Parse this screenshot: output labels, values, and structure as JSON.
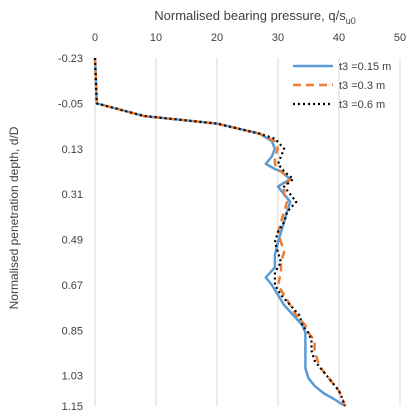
{
  "chart_data": {
    "type": "line",
    "title": "Normalised bearing pressure, q/s",
    "title_subscript": "u0",
    "xlabel": "Normalised bearing pressure, q/s",
    "ylabel": "Normalised penetration depth, d/D",
    "xlim": [
      0,
      50
    ],
    "ylim": [
      -0.23,
      1.15
    ],
    "x_axis_position": "top",
    "y_axis_inverted": true,
    "grid": "vertical",
    "legend_position": "top-right",
    "x_ticks": [
      "0",
      "10",
      "20",
      "30",
      "40",
      "50"
    ],
    "y_ticks": [
      "-0.23",
      "-0.05",
      "0.13",
      "0.31",
      "0.49",
      "0.67",
      "0.85",
      "1.03",
      "1.15"
    ],
    "series": [
      {
        "name": "t3 =0.15 m",
        "color": "#5b9bd5",
        "style": "solid",
        "points": [
          [
            0,
            -0.23
          ],
          [
            0.3,
            -0.05
          ],
          [
            8,
            0.0
          ],
          [
            20,
            0.03
          ],
          [
            27,
            0.07
          ],
          [
            29,
            0.1
          ],
          [
            29.5,
            0.13
          ],
          [
            29,
            0.16
          ],
          [
            28,
            0.19
          ],
          [
            29.5,
            0.21
          ],
          [
            30.5,
            0.22
          ],
          [
            32,
            0.25
          ],
          [
            30,
            0.28
          ],
          [
            31,
            0.31
          ],
          [
            32,
            0.34
          ],
          [
            31.5,
            0.38
          ],
          [
            31,
            0.42
          ],
          [
            30.5,
            0.46
          ],
          [
            30,
            0.5
          ],
          [
            29.5,
            0.55
          ],
          [
            29.5,
            0.6
          ],
          [
            28,
            0.64
          ],
          [
            29,
            0.67
          ],
          [
            30,
            0.71
          ],
          [
            31,
            0.75
          ],
          [
            32.5,
            0.79
          ],
          [
            34,
            0.83
          ],
          [
            34.5,
            0.86
          ],
          [
            34.5,
            0.89
          ],
          [
            34.5,
            0.93
          ],
          [
            34.5,
            0.97
          ],
          [
            34.5,
            1.0
          ],
          [
            35,
            1.04
          ],
          [
            36,
            1.07
          ],
          [
            37.5,
            1.1
          ],
          [
            39,
            1.12
          ],
          [
            41,
            1.15
          ]
        ]
      },
      {
        "name": "t3 =0.3 m",
        "color": "#ed7d31",
        "style": "dashed",
        "points": [
          [
            0,
            -0.23
          ],
          [
            0.3,
            -0.05
          ],
          [
            8,
            0.0
          ],
          [
            20,
            0.03
          ],
          [
            27,
            0.07
          ],
          [
            29.5,
            0.1
          ],
          [
            30,
            0.13
          ],
          [
            29.5,
            0.16
          ],
          [
            29.5,
            0.19
          ],
          [
            30,
            0.21
          ],
          [
            31,
            0.23
          ],
          [
            32,
            0.25
          ],
          [
            31,
            0.28
          ],
          [
            31,
            0.31
          ],
          [
            31.5,
            0.34
          ],
          [
            31,
            0.38
          ],
          [
            30.5,
            0.42
          ],
          [
            30,
            0.46
          ],
          [
            30.5,
            0.5
          ],
          [
            31,
            0.54
          ],
          [
            30.5,
            0.58
          ],
          [
            30.5,
            0.62
          ],
          [
            30,
            0.67
          ],
          [
            31,
            0.71
          ],
          [
            32,
            0.75
          ],
          [
            33,
            0.79
          ],
          [
            34.5,
            0.83
          ],
          [
            35,
            0.86
          ],
          [
            36,
            0.89
          ],
          [
            36,
            0.93
          ],
          [
            36.5,
            0.97
          ],
          [
            37,
            1.0
          ],
          [
            38,
            1.03
          ],
          [
            39,
            1.06
          ],
          [
            40,
            1.09
          ],
          [
            40.5,
            1.12
          ],
          [
            41,
            1.15
          ]
        ]
      },
      {
        "name": "t3 =0.6 m",
        "color": "#000000",
        "style": "dotted",
        "points": [
          [
            0,
            -0.23
          ],
          [
            0.3,
            -0.05
          ],
          [
            8,
            0.0
          ],
          [
            20,
            0.03
          ],
          [
            27,
            0.07
          ],
          [
            29.5,
            0.09
          ],
          [
            31,
            0.13
          ],
          [
            30.5,
            0.16
          ],
          [
            30,
            0.19
          ],
          [
            31,
            0.22
          ],
          [
            32.5,
            0.25
          ],
          [
            31,
            0.28
          ],
          [
            32,
            0.31
          ],
          [
            33,
            0.34
          ],
          [
            31.5,
            0.38
          ],
          [
            31,
            0.42
          ],
          [
            30,
            0.46
          ],
          [
            29.5,
            0.5
          ],
          [
            30,
            0.54
          ],
          [
            30.5,
            0.58
          ],
          [
            29.5,
            0.62
          ],
          [
            29.5,
            0.67
          ],
          [
            30.5,
            0.71
          ],
          [
            32,
            0.75
          ],
          [
            33.5,
            0.79
          ],
          [
            34,
            0.83
          ],
          [
            35,
            0.86
          ],
          [
            35.5,
            0.89
          ],
          [
            35.5,
            0.93
          ],
          [
            36,
            0.97
          ],
          [
            37,
            1.0
          ],
          [
            38,
            1.03
          ],
          [
            39,
            1.06
          ],
          [
            40,
            1.09
          ],
          [
            40.5,
            1.12
          ],
          [
            41,
            1.15
          ]
        ]
      }
    ]
  }
}
